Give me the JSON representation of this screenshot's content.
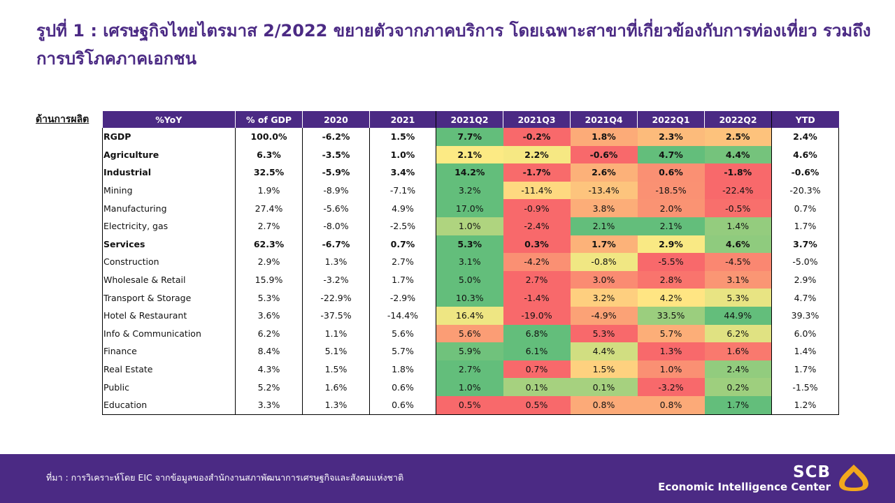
{
  "title": "รูปที่ 1 : เศรษฐกิจไทยไตรมาส 2/2022 ขยายตัวจากภาคบริการ โดยเฉพาะสาขาที่เกี่ยวข้องกับการท่องเที่ยว รวมถึงการบริโภคภาคเอกชน",
  "side_label": "ด้านการผลิต",
  "colors": {
    "brand_purple": "#4b2a84",
    "heat_green": "#63be7b",
    "heat_yellow": "#ffeb84",
    "heat_red": "#f8696b",
    "logo_gold": "#f2a81d"
  },
  "chart_data": {
    "type": "table",
    "columns": [
      "%YoY",
      "% of GDP",
      "2020",
      "2021",
      "2021Q2",
      "2021Q3",
      "2021Q4",
      "2022Q1",
      "2022Q2",
      "YTD"
    ],
    "heatmap_columns": [
      "2021Q2",
      "2021Q3",
      "2021Q4",
      "2022Q1",
      "2022Q2"
    ],
    "rows": [
      {
        "label": "RGDP",
        "bold": true,
        "cells": [
          "100.0%",
          "-6.2%",
          "1.5%",
          "7.7%",
          "-0.2%",
          "1.8%",
          "2.3%",
          "2.5%",
          "2.4%"
        ]
      },
      {
        "label": "Agriculture",
        "bold": true,
        "cells": [
          "6.3%",
          "-3.5%",
          "1.0%",
          "2.1%",
          "2.2%",
          "-0.6%",
          "4.7%",
          "4.4%",
          "4.6%"
        ]
      },
      {
        "label": "Industrial",
        "bold": true,
        "cells": [
          "32.5%",
          "-5.9%",
          "3.4%",
          "14.2%",
          "-1.7%",
          "2.6%",
          "0.6%",
          "-1.8%",
          "-0.6%"
        ]
      },
      {
        "label": "Mining",
        "bold": false,
        "cells": [
          "1.9%",
          "-8.9%",
          "-7.1%",
          "3.2%",
          "-11.4%",
          "-13.4%",
          "-18.5%",
          "-22.4%",
          "-20.3%"
        ]
      },
      {
        "label": "Manufacturing",
        "bold": false,
        "cells": [
          "27.4%",
          "-5.6%",
          "4.9%",
          "17.0%",
          "-0.9%",
          "3.8%",
          "2.0%",
          "-0.5%",
          "0.7%"
        ]
      },
      {
        "label": "Electricity,  gas",
        "bold": false,
        "cells": [
          "2.7%",
          "-8.0%",
          "-2.5%",
          "1.0%",
          "-2.4%",
          "2.1%",
          "2.1%",
          "1.4%",
          "1.7%"
        ]
      },
      {
        "label": "Services",
        "bold": true,
        "cells": [
          "62.3%",
          "-6.7%",
          "0.7%",
          "5.3%",
          "0.3%",
          "1.7%",
          "2.9%",
          "4.6%",
          "3.7%"
        ]
      },
      {
        "label": "Construction",
        "bold": false,
        "cells": [
          "2.9%",
          "1.3%",
          "2.7%",
          "3.1%",
          "-4.2%",
          "-0.8%",
          "-5.5%",
          "-4.5%",
          "-5.0%"
        ]
      },
      {
        "label": "Wholesale & Retail",
        "bold": false,
        "cells": [
          "15.9%",
          "-3.2%",
          "1.7%",
          "5.0%",
          "2.7%",
          "3.0%",
          "2.8%",
          "3.1%",
          "2.9%"
        ]
      },
      {
        "label": "Transport & Storage",
        "bold": false,
        "cells": [
          "5.3%",
          "-22.9%",
          "-2.9%",
          "10.3%",
          "-1.4%",
          "3.2%",
          "4.2%",
          "5.3%",
          "4.7%"
        ]
      },
      {
        "label": "Hotel & Restaurant",
        "bold": false,
        "cells": [
          "3.6%",
          "-37.5%",
          "-14.4%",
          "16.4%",
          "-19.0%",
          "-4.9%",
          "33.5%",
          "44.9%",
          "39.3%"
        ]
      },
      {
        "label": "Info & Communication",
        "bold": false,
        "cells": [
          "6.2%",
          "1.1%",
          "5.6%",
          "5.6%",
          "6.8%",
          "5.3%",
          "5.7%",
          "6.2%",
          "6.0%"
        ]
      },
      {
        "label": "Finance",
        "bold": false,
        "cells": [
          "8.4%",
          "5.1%",
          "5.7%",
          "5.9%",
          "6.1%",
          "4.4%",
          "1.3%",
          "1.6%",
          "1.4%"
        ]
      },
      {
        "label": "Real Estate",
        "bold": false,
        "cells": [
          "4.3%",
          "1.5%",
          "1.8%",
          "2.7%",
          "0.7%",
          "1.5%",
          "1.0%",
          "2.4%",
          "1.7%"
        ]
      },
      {
        "label": "Public",
        "bold": false,
        "cells": [
          "5.2%",
          "1.6%",
          "0.6%",
          "1.0%",
          "0.1%",
          "0.1%",
          "-3.2%",
          "0.2%",
          "-1.5%"
        ]
      },
      {
        "label": "Education",
        "bold": false,
        "cells": [
          "3.3%",
          "1.3%",
          "0.6%",
          "0.5%",
          "0.5%",
          "0.8%",
          "0.8%",
          "1.7%",
          "1.2%"
        ]
      }
    ]
  },
  "footer": {
    "source": "ที่มา : การวิเคราะห์โดย EIC จากข้อมูลของสำนักงานสภาพัฒนาการเศรษฐกิจและสังคมแห่งชาติ",
    "brand_name": "SCB",
    "brand_sub": "Economic Intelligence Center",
    "logo_icon": "scb-lotus-logo-icon"
  }
}
